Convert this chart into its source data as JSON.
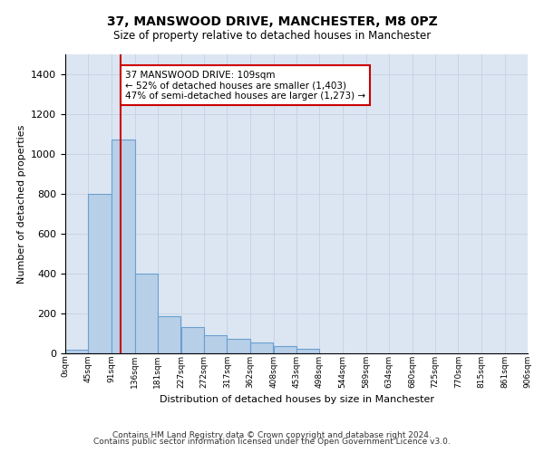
{
  "title": "37, MANSWOOD DRIVE, MANCHESTER, M8 0PZ",
  "subtitle": "Size of property relative to detached houses in Manchester",
  "xlabel": "Distribution of detached houses by size in Manchester",
  "ylabel": "Number of detached properties",
  "footnote1": "Contains HM Land Registry data © Crown copyright and database right 2024.",
  "footnote2": "Contains public sector information licensed under the Open Government Licence v3.0.",
  "annotation_title": "37 MANSWOOD DRIVE: 109sqm",
  "annotation_line1": "← 52% of detached houses are smaller (1,403)",
  "annotation_line2": "47% of semi-detached houses are larger (1,273) →",
  "property_size_sqm": 109,
  "bar_color": "#b8cfe8",
  "bar_edge_color": "#6a9fd0",
  "marker_line_color": "#cc0000",
  "annotation_box_color": "#cc0000",
  "grid_color": "#c8d4e4",
  "background_color": "#dce6f2",
  "bin_edges": [
    0,
    45,
    91,
    136,
    181,
    227,
    272,
    317,
    362,
    408,
    453,
    498,
    544,
    589,
    634,
    680,
    725,
    770,
    815,
    861,
    906
  ],
  "bin_labels": [
    "0sqm",
    "45sqm",
    "91sqm",
    "136sqm",
    "181sqm",
    "227sqm",
    "272sqm",
    "317sqm",
    "362sqm",
    "408sqm",
    "453sqm",
    "498sqm",
    "544sqm",
    "589sqm",
    "634sqm",
    "680sqm",
    "725sqm",
    "770sqm",
    "815sqm",
    "861sqm",
    "906sqm"
  ],
  "bar_heights": [
    20,
    800,
    1075,
    400,
    185,
    130,
    90,
    75,
    55,
    35,
    25,
    0,
    0,
    0,
    0,
    0,
    0,
    0,
    0,
    0
  ],
  "ylim": [
    0,
    1500
  ],
  "yticks": [
    0,
    200,
    400,
    600,
    800,
    1000,
    1200,
    1400
  ]
}
